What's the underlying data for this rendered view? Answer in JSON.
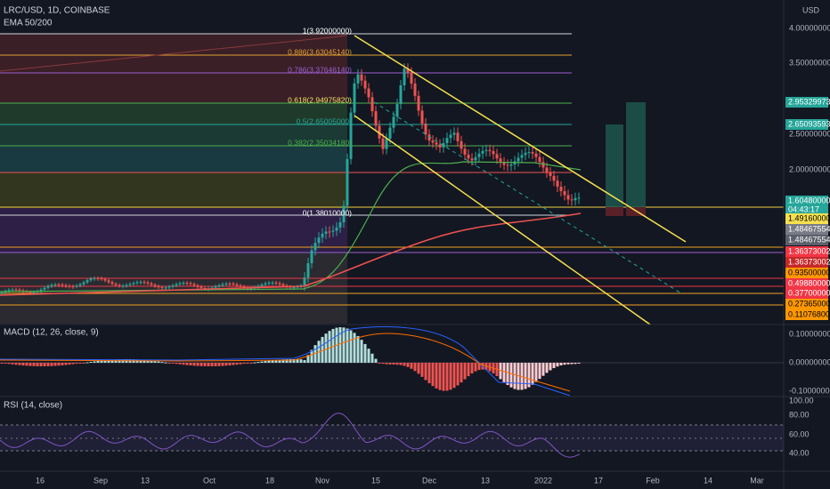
{
  "header": {
    "symbol": "LRC/USD, 1D, COINBASE",
    "indicator": "EMA 50/200",
    "currency": "USD"
  },
  "price_axis": [
    "4.00000000",
    "3.50000000",
    "2.50000000",
    "2.00000000"
  ],
  "price_tags": [
    "2.95329973",
    "2.65093593",
    "1.60480000",
    "04:43:17",
    "1.49160000",
    "1.48467554",
    "1.48467554",
    "1.36373002",
    "1.36373002",
    "0.93500000",
    "0.49880000",
    "0.37700000",
    "0.27365000",
    "0.11076800"
  ],
  "fib_levels": [
    "1(3.92000000)",
    "0.886(3.63045140)",
    "0.786(3.37646140)",
    "0.618(2.94975820)",
    "0.5(2.65005000)",
    "0.382(2.35034180)",
    "0(1.38010000)"
  ],
  "macd": {
    "title": "MACD (12, 26, close, 9)",
    "axis": [
      "0.10000000",
      "0.00000000",
      "-0.10000000"
    ]
  },
  "rsi": {
    "title": "RSI (14, close)",
    "axis": [
      "100.00",
      "80.00",
      "60.00",
      "40.00"
    ]
  },
  "time_axis": [
    "16",
    "Sep",
    "13",
    "Oct",
    "18",
    "Nov",
    "15",
    "Dec",
    "13",
    "2022",
    "17",
    "Feb",
    "14",
    "Mar"
  ]
}
